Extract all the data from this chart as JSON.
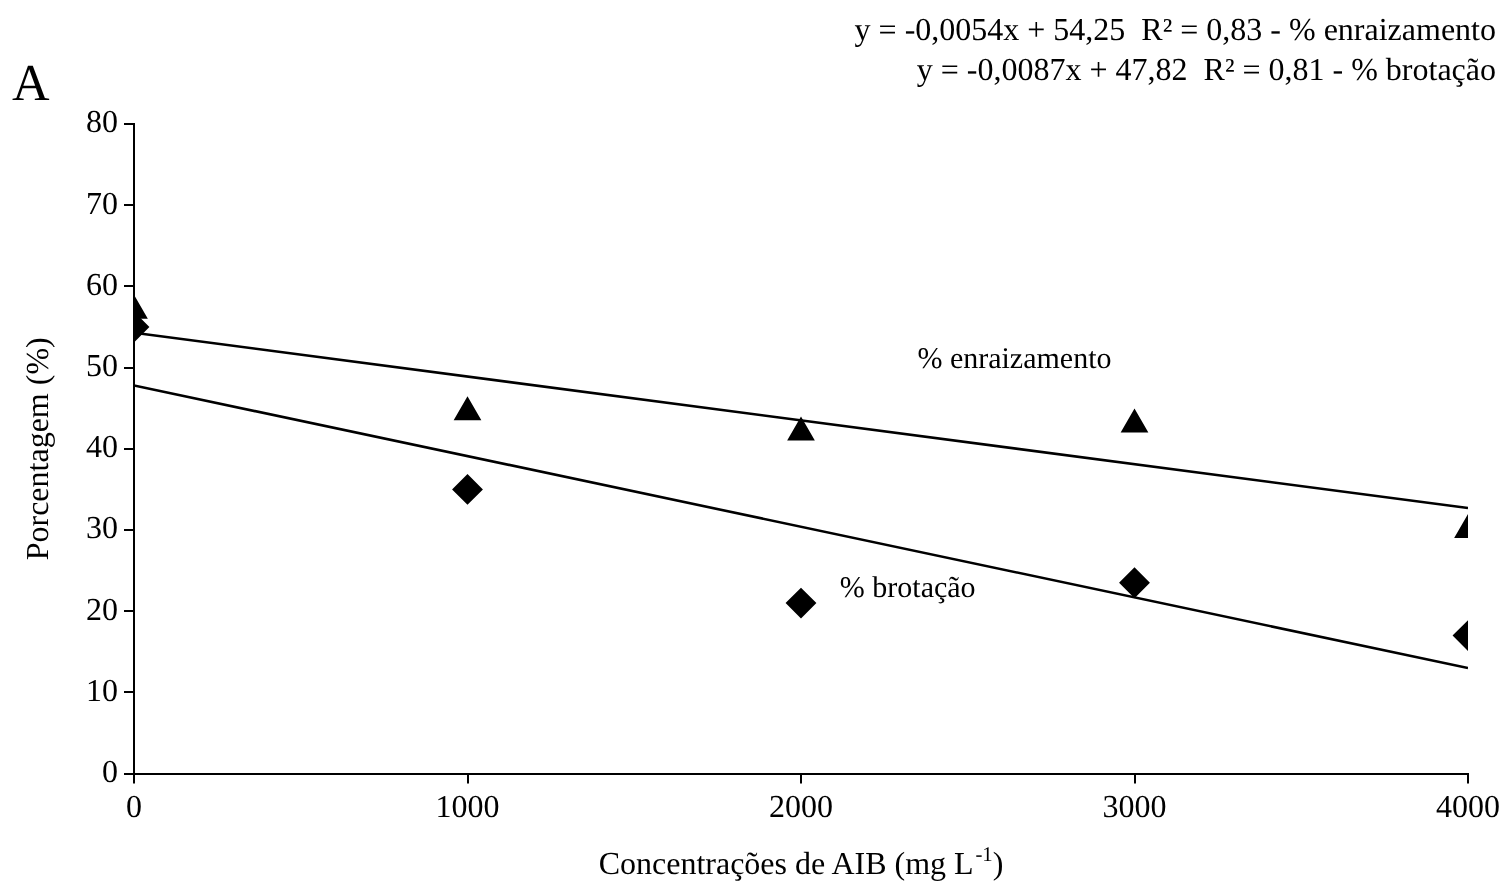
{
  "chart_data": {
    "type": "scatter",
    "title": "A",
    "xlabel": "Concentrações de AIB (mg L$^{-1}$)",
    "ylabel": "Porcentagem (%)",
    "xlim": [
      0,
      4000
    ],
    "xticks": [
      0,
      1000,
      2000,
      3000,
      4000
    ],
    "ylim": [
      0,
      80
    ],
    "yticks": [
      0,
      10,
      20,
      30,
      40,
      50,
      60,
      70,
      80
    ],
    "grid": false,
    "legend": false,
    "series": [
      {
        "type": "scatter",
        "marker": "triangle",
        "color": "#000000",
        "x": [
          0,
          1000,
          2000,
          3000,
          4000
        ],
        "values": [
          57,
          44.5,
          42,
          43,
          30
        ]
      },
      {
        "type": "scatter",
        "marker": "diamond",
        "color": "#000000",
        "x": [
          0,
          1000,
          2000,
          3000,
          4000
        ],
        "values": [
          55,
          35,
          21,
          23.5,
          17
        ]
      },
      {
        "name": "% enraizamento",
        "type": "line",
        "marker": "none",
        "color": "#000000",
        "x": [
          0,
          4000
        ],
        "values": [
          54.3,
          32.7
        ]
      },
      {
        "name": "% brotação",
        "type": "line",
        "marker": "none",
        "color": "#000000",
        "x": [
          0,
          4000
        ],
        "values": [
          47.8,
          13.0
        ]
      }
    ],
    "annotations": [
      "y = -0,0054x + 54,25  R² = 0,83 - % enraizamento",
      "y = -0,0087x + 47,82  R² = 0,81 - % brotação"
    ]
  }
}
